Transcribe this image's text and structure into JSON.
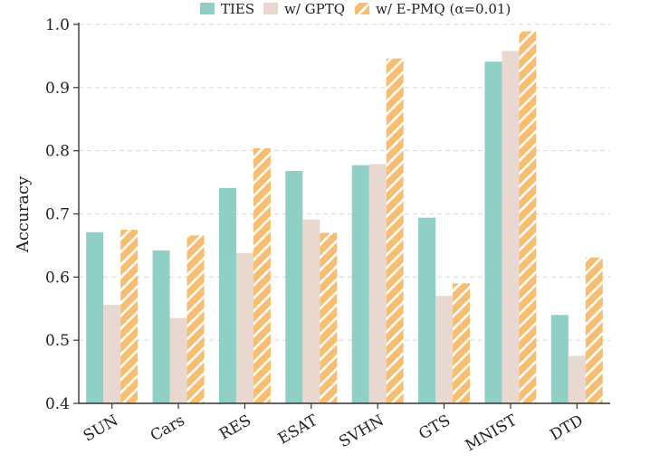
{
  "chart_data": {
    "type": "bar",
    "title": "",
    "xlabel": "",
    "ylabel": "Accuracy",
    "ylim": [
      0.4,
      1.0
    ],
    "yticks": [
      "0.4",
      "0.5",
      "0.6",
      "0.7",
      "0.8",
      "0.9",
      "1.0"
    ],
    "grid": "horizontal dashed",
    "legend_position": "top-center",
    "categories": [
      "SUN",
      "Cars",
      "RES",
      "ESAT",
      "SVHN",
      "GTS",
      "MNIST",
      "DTD"
    ],
    "series": [
      {
        "name": "TIES",
        "color": "#8fcfc6",
        "pattern": "solid",
        "values": [
          0.671,
          0.642,
          0.741,
          0.768,
          0.777,
          0.694,
          0.941,
          0.54
        ]
      },
      {
        "name": "w/ GPTQ",
        "color": "#e8d8cf",
        "pattern": "solid",
        "values": [
          0.556,
          0.535,
          0.638,
          0.691,
          0.779,
          0.57,
          0.958,
          0.475
        ]
      },
      {
        "name": "w/ E-PMQ (α=0.01)",
        "color": "#f9bd6f",
        "pattern": "hatch",
        "values": [
          0.675,
          0.666,
          0.804,
          0.67,
          0.946,
          0.59,
          0.989,
          0.631
        ]
      }
    ]
  }
}
